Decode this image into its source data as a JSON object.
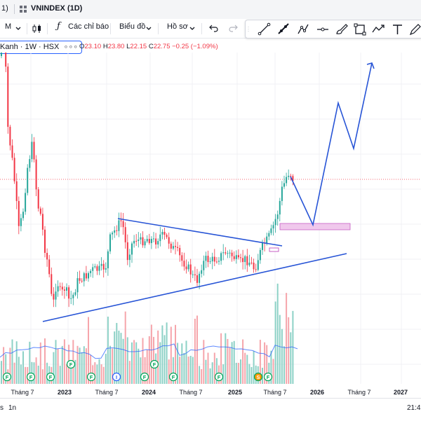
{
  "tabs": {
    "first_label": "1)",
    "second_label": "VNINDEX (1D)"
  },
  "toolbar": {
    "interval_label": "M",
    "indicators_label": "Các chỉ báo",
    "chart_type_label": "Biểu đồ",
    "profile_label": "Hồ sơ"
  },
  "legend": {
    "symbol": "Kanh · 1W · HSX",
    "open_label": "O",
    "open": "23.10",
    "high_label": "H",
    "high": "23.80",
    "low_label": "L",
    "low": "22.15",
    "close_label": "C",
    "close": "22.75",
    "change": "−0.25 (−1.09%)"
  },
  "bottom": {
    "left_label": "s",
    "range_label": "1n",
    "time": "21:4"
  },
  "colors": {
    "up": "#26a69a",
    "down": "#f23645",
    "pattern": "#2754d6",
    "zone": "#f0c8ec",
    "ma": "#2962ff"
  },
  "icons": [
    "candles-icon",
    "fx-icon",
    "chevron-down-icon",
    "undo-icon",
    "redo-icon",
    "trend-line-icon",
    "ray-icon",
    "polyline-icon",
    "horizontal-line-icon",
    "brush-icon",
    "rectangle-icon",
    "path-icon",
    "text-icon",
    "pen-icon"
  ],
  "chart_data": {
    "type": "candlestick",
    "symbol": "Kanh",
    "interval": "1W",
    "exchange": "HSX",
    "ohlc_last": {
      "open": 23.1,
      "high": 23.8,
      "low": 22.15,
      "close": 22.75
    },
    "x_tick_labels": [
      "Tháng 7",
      "2023",
      "Tháng 7",
      "2024",
      "Tháng 7",
      "2025",
      "Tháng 7",
      "2026",
      "Tháng 7",
      "2027"
    ],
    "price_path": [
      [
        0,
        80
      ],
      [
        4,
        10
      ],
      [
        10,
        180
      ],
      [
        18,
        240
      ],
      [
        26,
        330
      ],
      [
        32,
        300
      ],
      [
        38,
        240
      ],
      [
        46,
        200
      ],
      [
        52,
        290
      ],
      [
        58,
        310
      ],
      [
        62,
        350
      ],
      [
        68,
        380
      ],
      [
        74,
        440
      ],
      [
        80,
        400
      ],
      [
        86,
        420
      ],
      [
        92,
        410
      ],
      [
        98,
        430
      ],
      [
        104,
        420
      ],
      [
        110,
        400
      ],
      [
        120,
        395
      ],
      [
        130,
        385
      ],
      [
        140,
        385
      ],
      [
        150,
        380
      ],
      [
        156,
        340
      ],
      [
        162,
        330
      ],
      [
        168,
        320
      ],
      [
        172,
        315
      ],
      [
        176,
        330
      ],
      [
        180,
        370
      ],
      [
        186,
        350
      ],
      [
        192,
        340
      ],
      [
        200,
        345
      ],
      [
        210,
        340
      ],
      [
        220,
        345
      ],
      [
        228,
        335
      ],
      [
        236,
        340
      ],
      [
        240,
        345
      ],
      [
        246,
        355
      ],
      [
        252,
        360
      ],
      [
        258,
        372
      ],
      [
        266,
        380
      ],
      [
        274,
        395
      ],
      [
        280,
        400
      ],
      [
        286,
        380
      ],
      [
        292,
        370
      ],
      [
        300,
        372
      ],
      [
        310,
        368
      ],
      [
        320,
        360
      ],
      [
        330,
        365
      ],
      [
        340,
        375
      ],
      [
        348,
        370
      ],
      [
        356,
        375
      ],
      [
        362,
        385
      ],
      [
        368,
        365
      ],
      [
        374,
        350
      ],
      [
        380,
        342
      ],
      [
        386,
        330
      ],
      [
        392,
        312
      ],
      [
        396,
        300
      ],
      [
        400,
        272
      ],
      [
        404,
        262
      ],
      [
        408,
        250
      ],
      [
        412,
        245
      ],
      [
        416,
        255
      ]
    ],
    "annotations": {
      "triangle_upper": [
        [
          168,
          312
        ],
        [
          402,
          351
        ]
      ],
      "triangle_lower": [
        [
          61,
          459
        ],
        [
          494,
          362
        ]
      ],
      "projection_path": [
        [
          414,
          252
        ],
        [
          446,
          321
        ],
        [
          482,
          147
        ],
        [
          504,
          212
        ],
        [
          530,
          90
        ]
      ],
      "support_zone": [
        399,
        319,
        100,
        9
      ],
      "small_zone": [
        384,
        354,
        13,
        5
      ]
    },
    "event_badges": [
      "F",
      "F",
      "F",
      "F",
      "F",
      "I",
      "F",
      "F",
      "F",
      "F",
      "S",
      "F"
    ]
  }
}
